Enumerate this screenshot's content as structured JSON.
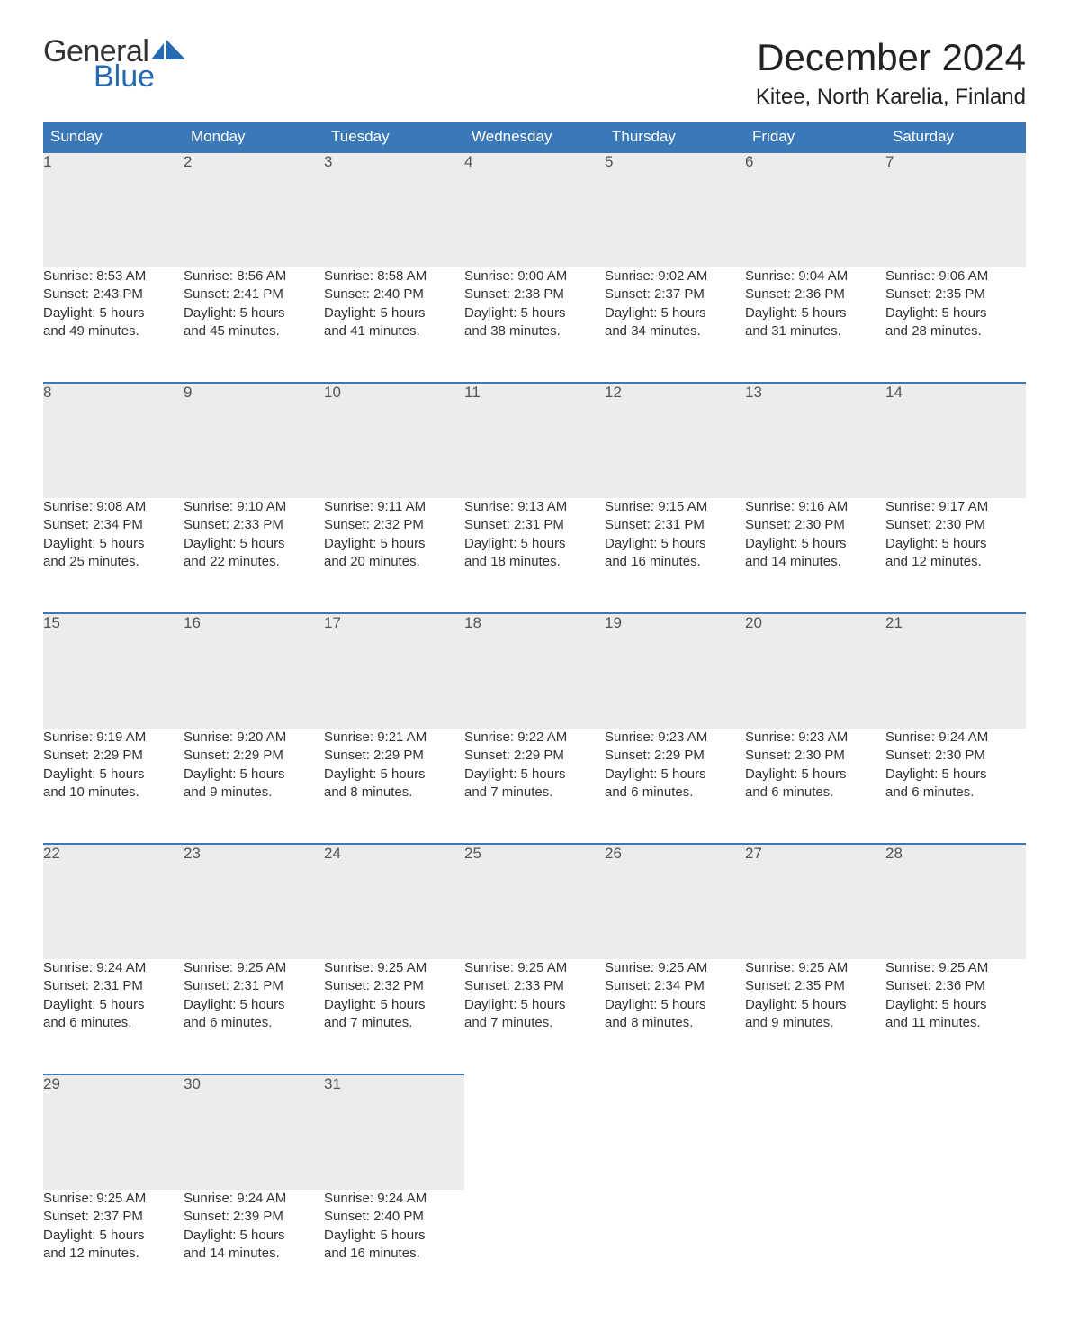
{
  "logo": {
    "text_general": "General",
    "text_blue": "Blue",
    "blue_hex": "#246bb3"
  },
  "header": {
    "month_title": "December 2024",
    "location": "Kitee, North Karelia, Finland"
  },
  "colors": {
    "header_bg": "#3a78b8",
    "header_text": "#ffffff",
    "daynum_bg": "#ececec",
    "daynum_border": "#3a78b8",
    "body_text": "#333333",
    "page_bg": "#ffffff",
    "title_text": "#222222"
  },
  "typography": {
    "month_title_fontsize": 42,
    "location_fontsize": 24,
    "dayheader_fontsize": 17,
    "daynum_fontsize": 17,
    "cell_fontsize": 15
  },
  "calendar": {
    "day_headers": [
      "Sunday",
      "Monday",
      "Tuesday",
      "Wednesday",
      "Thursday",
      "Friday",
      "Saturday"
    ],
    "weeks": [
      [
        {
          "n": "1",
          "sunrise": "Sunrise: 8:53 AM",
          "sunset": "Sunset: 2:43 PM",
          "day1": "Daylight: 5 hours",
          "day2": "and 49 minutes."
        },
        {
          "n": "2",
          "sunrise": "Sunrise: 8:56 AM",
          "sunset": "Sunset: 2:41 PM",
          "day1": "Daylight: 5 hours",
          "day2": "and 45 minutes."
        },
        {
          "n": "3",
          "sunrise": "Sunrise: 8:58 AM",
          "sunset": "Sunset: 2:40 PM",
          "day1": "Daylight: 5 hours",
          "day2": "and 41 minutes."
        },
        {
          "n": "4",
          "sunrise": "Sunrise: 9:00 AM",
          "sunset": "Sunset: 2:38 PM",
          "day1": "Daylight: 5 hours",
          "day2": "and 38 minutes."
        },
        {
          "n": "5",
          "sunrise": "Sunrise: 9:02 AM",
          "sunset": "Sunset: 2:37 PM",
          "day1": "Daylight: 5 hours",
          "day2": "and 34 minutes."
        },
        {
          "n": "6",
          "sunrise": "Sunrise: 9:04 AM",
          "sunset": "Sunset: 2:36 PM",
          "day1": "Daylight: 5 hours",
          "day2": "and 31 minutes."
        },
        {
          "n": "7",
          "sunrise": "Sunrise: 9:06 AM",
          "sunset": "Sunset: 2:35 PM",
          "day1": "Daylight: 5 hours",
          "day2": "and 28 minutes."
        }
      ],
      [
        {
          "n": "8",
          "sunrise": "Sunrise: 9:08 AM",
          "sunset": "Sunset: 2:34 PM",
          "day1": "Daylight: 5 hours",
          "day2": "and 25 minutes."
        },
        {
          "n": "9",
          "sunrise": "Sunrise: 9:10 AM",
          "sunset": "Sunset: 2:33 PM",
          "day1": "Daylight: 5 hours",
          "day2": "and 22 minutes."
        },
        {
          "n": "10",
          "sunrise": "Sunrise: 9:11 AM",
          "sunset": "Sunset: 2:32 PM",
          "day1": "Daylight: 5 hours",
          "day2": "and 20 minutes."
        },
        {
          "n": "11",
          "sunrise": "Sunrise: 9:13 AM",
          "sunset": "Sunset: 2:31 PM",
          "day1": "Daylight: 5 hours",
          "day2": "and 18 minutes."
        },
        {
          "n": "12",
          "sunrise": "Sunrise: 9:15 AM",
          "sunset": "Sunset: 2:31 PM",
          "day1": "Daylight: 5 hours",
          "day2": "and 16 minutes."
        },
        {
          "n": "13",
          "sunrise": "Sunrise: 9:16 AM",
          "sunset": "Sunset: 2:30 PM",
          "day1": "Daylight: 5 hours",
          "day2": "and 14 minutes."
        },
        {
          "n": "14",
          "sunrise": "Sunrise: 9:17 AM",
          "sunset": "Sunset: 2:30 PM",
          "day1": "Daylight: 5 hours",
          "day2": "and 12 minutes."
        }
      ],
      [
        {
          "n": "15",
          "sunrise": "Sunrise: 9:19 AM",
          "sunset": "Sunset: 2:29 PM",
          "day1": "Daylight: 5 hours",
          "day2": "and 10 minutes."
        },
        {
          "n": "16",
          "sunrise": "Sunrise: 9:20 AM",
          "sunset": "Sunset: 2:29 PM",
          "day1": "Daylight: 5 hours",
          "day2": "and 9 minutes."
        },
        {
          "n": "17",
          "sunrise": "Sunrise: 9:21 AM",
          "sunset": "Sunset: 2:29 PM",
          "day1": "Daylight: 5 hours",
          "day2": "and 8 minutes."
        },
        {
          "n": "18",
          "sunrise": "Sunrise: 9:22 AM",
          "sunset": "Sunset: 2:29 PM",
          "day1": "Daylight: 5 hours",
          "day2": "and 7 minutes."
        },
        {
          "n": "19",
          "sunrise": "Sunrise: 9:23 AM",
          "sunset": "Sunset: 2:29 PM",
          "day1": "Daylight: 5 hours",
          "day2": "and 6 minutes."
        },
        {
          "n": "20",
          "sunrise": "Sunrise: 9:23 AM",
          "sunset": "Sunset: 2:30 PM",
          "day1": "Daylight: 5 hours",
          "day2": "and 6 minutes."
        },
        {
          "n": "21",
          "sunrise": "Sunrise: 9:24 AM",
          "sunset": "Sunset: 2:30 PM",
          "day1": "Daylight: 5 hours",
          "day2": "and 6 minutes."
        }
      ],
      [
        {
          "n": "22",
          "sunrise": "Sunrise: 9:24 AM",
          "sunset": "Sunset: 2:31 PM",
          "day1": "Daylight: 5 hours",
          "day2": "and 6 minutes."
        },
        {
          "n": "23",
          "sunrise": "Sunrise: 9:25 AM",
          "sunset": "Sunset: 2:31 PM",
          "day1": "Daylight: 5 hours",
          "day2": "and 6 minutes."
        },
        {
          "n": "24",
          "sunrise": "Sunrise: 9:25 AM",
          "sunset": "Sunset: 2:32 PM",
          "day1": "Daylight: 5 hours",
          "day2": "and 7 minutes."
        },
        {
          "n": "25",
          "sunrise": "Sunrise: 9:25 AM",
          "sunset": "Sunset: 2:33 PM",
          "day1": "Daylight: 5 hours",
          "day2": "and 7 minutes."
        },
        {
          "n": "26",
          "sunrise": "Sunrise: 9:25 AM",
          "sunset": "Sunset: 2:34 PM",
          "day1": "Daylight: 5 hours",
          "day2": "and 8 minutes."
        },
        {
          "n": "27",
          "sunrise": "Sunrise: 9:25 AM",
          "sunset": "Sunset: 2:35 PM",
          "day1": "Daylight: 5 hours",
          "day2": "and 9 minutes."
        },
        {
          "n": "28",
          "sunrise": "Sunrise: 9:25 AM",
          "sunset": "Sunset: 2:36 PM",
          "day1": "Daylight: 5 hours",
          "day2": "and 11 minutes."
        }
      ],
      [
        {
          "n": "29",
          "sunrise": "Sunrise: 9:25 AM",
          "sunset": "Sunset: 2:37 PM",
          "day1": "Daylight: 5 hours",
          "day2": "and 12 minutes."
        },
        {
          "n": "30",
          "sunrise": "Sunrise: 9:24 AM",
          "sunset": "Sunset: 2:39 PM",
          "day1": "Daylight: 5 hours",
          "day2": "and 14 minutes."
        },
        {
          "n": "31",
          "sunrise": "Sunrise: 9:24 AM",
          "sunset": "Sunset: 2:40 PM",
          "day1": "Daylight: 5 hours",
          "day2": "and 16 minutes."
        },
        null,
        null,
        null,
        null
      ]
    ]
  }
}
